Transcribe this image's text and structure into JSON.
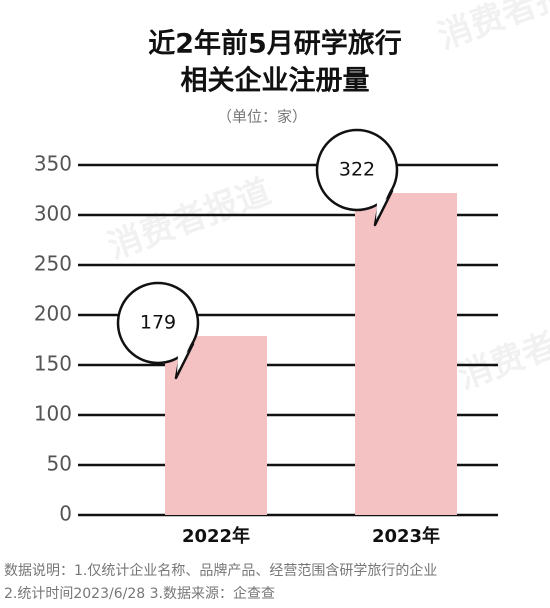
{
  "chart_data": {
    "type": "bar",
    "title": [
      "近2年前5月研学旅行",
      "相关企业注册量"
    ],
    "subtitle": "（单位：家）",
    "categories": [
      "2022年",
      "2023年"
    ],
    "values": [
      179,
      322
    ],
    "color": "#f4c2c2",
    "ylim": [
      0,
      350
    ],
    "yticks": [
      0,
      50,
      100,
      150,
      200,
      250,
      300,
      350
    ],
    "grid": true,
    "notes": [
      "数据说明：1.仅统计企业名称、品牌产品、经营范围含研学旅行的企业",
      "2.统计时间2023/6/28   3.数据来源：企查查"
    ],
    "watermark": "消费者报道"
  }
}
